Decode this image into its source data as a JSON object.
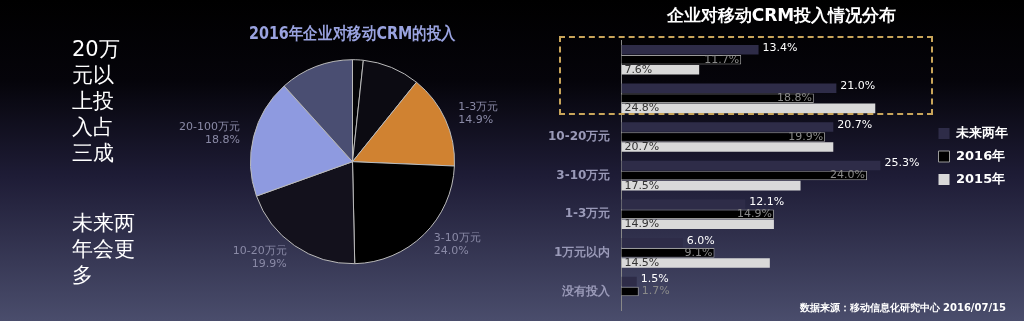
{
  "chart_data": [
    {
      "type": "other",
      "annotations": [
        "20万元以上投入占三成",
        "未来两年会更多"
      ]
    },
    {
      "type": "pie",
      "title": "2016年企业对移动CRM的投入",
      "categories": [
        null,
        null,
        "1-3万元",
        "3-10万元",
        "10-20万元",
        "20-100万元",
        null
      ],
      "values": [
        1.7,
        9.1,
        14.9,
        24.0,
        19.9,
        18.8,
        11.7
      ],
      "value_labels": [
        null,
        null,
        "14.9%",
        "24.0%",
        "19.9%",
        "18.8%",
        null
      ],
      "colors": [
        "#050508",
        "#0c0b12",
        "#d08231",
        "#000000",
        "#13111c",
        "#8e9ae0",
        "#4a4e72"
      ]
    },
    {
      "type": "bar",
      "orientation": "horizontal",
      "title": "企业对移动CRM投入情况分布",
      "categories": [
        null,
        null,
        "10-20万元",
        "3-10万元",
        "1-3万元",
        "1万元以内",
        "没有投入"
      ],
      "series": [
        {
          "name": "未来两年",
          "color": "#2e2c48",
          "values": [
            13.4,
            21.0,
            20.7,
            25.3,
            12.1,
            6.0,
            1.5
          ],
          "value_labels": [
            "13.4%",
            "21.0%",
            "20.7%",
            "25.3%",
            "12.1%",
            "6.0%",
            "1.5%"
          ]
        },
        {
          "name": "2016年",
          "color": "#000000",
          "values": [
            11.7,
            18.8,
            19.9,
            24.0,
            14.9,
            9.1,
            1.7
          ],
          "value_labels": [
            "11.7%",
            "18.8%",
            "19.9%",
            "24.0%",
            "14.9%",
            "9.1%",
            "1.7%"
          ]
        },
        {
          "name": "2015年",
          "color": "#d9d9d9",
          "values": [
            7.6,
            24.8,
            20.7,
            17.5,
            14.9,
            14.5,
            null
          ],
          "value_labels": [
            "7.6%",
            "24.8%",
            "20.7%",
            "17.5%",
            "14.9%",
            "14.5%",
            null
          ]
        }
      ],
      "legend": "right",
      "grid": false,
      "annotations": [
        "数据来源：移动信息化研究中心 2016/07/15"
      ]
    }
  ]
}
